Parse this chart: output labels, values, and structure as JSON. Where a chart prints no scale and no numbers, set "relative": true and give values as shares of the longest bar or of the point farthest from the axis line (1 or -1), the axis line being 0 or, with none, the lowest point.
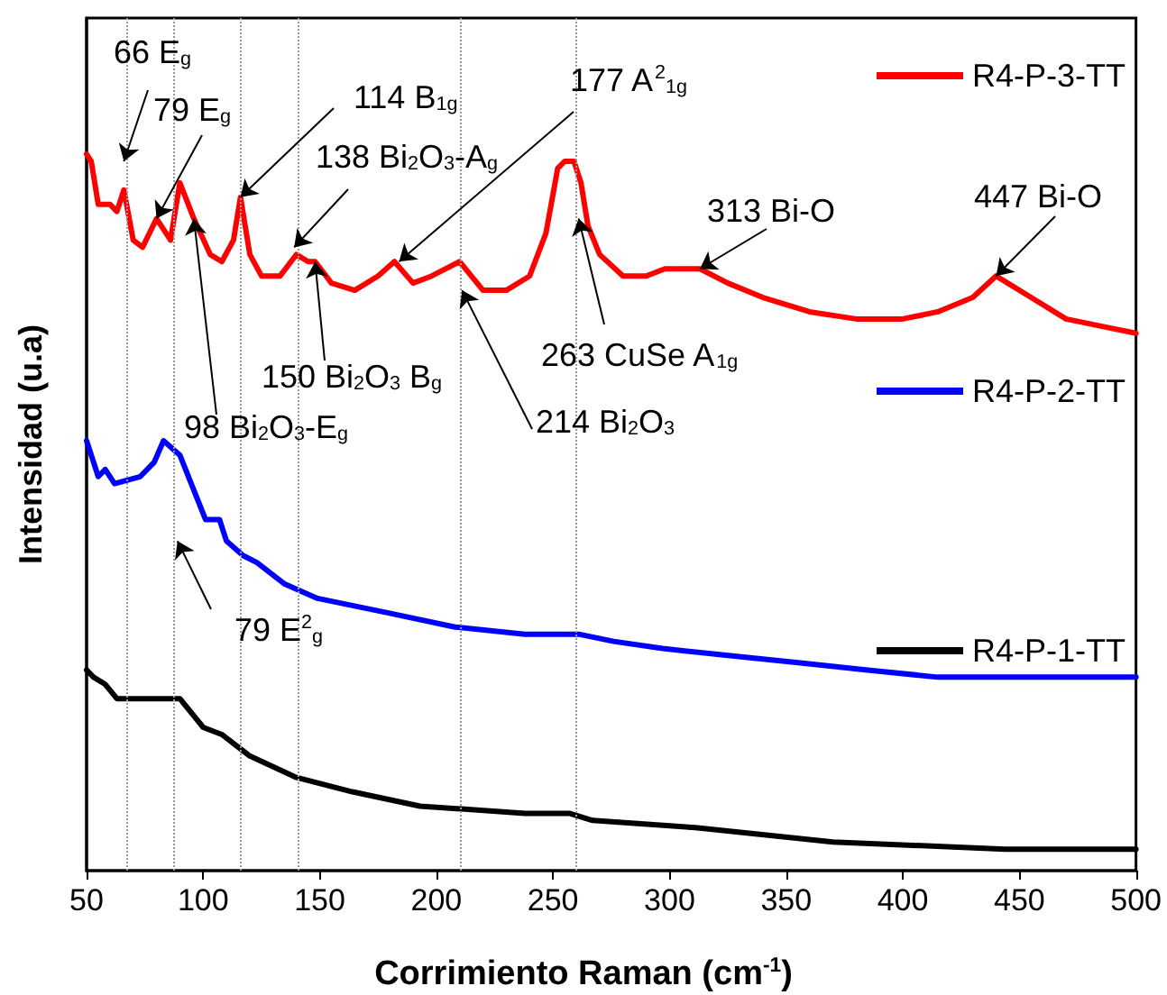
{
  "chart_data": {
    "type": "line",
    "xlabel": "Corrimiento Raman (cm$^{-1}$)",
    "ylabel": "Intensidad (u.a)",
    "relative": true,
    "tick_labels": "x",
    "xlim": [
      50,
      500
    ],
    "xticks": [
      50,
      100,
      150,
      200,
      250,
      300,
      350,
      400,
      450,
      500
    ],
    "legend": "right",
    "marker": "none",
    "line_style": "solid",
    "grid": false,
    "series": [
      {
        "name": "R4-P-3-TT",
        "color": "#ff0000",
        "x": [
          50,
          52,
          55,
          60,
          63,
          66,
          70,
          74,
          80,
          84,
          86,
          90,
          96,
          103,
          108,
          113,
          116,
          120,
          125,
          133,
          140,
          145,
          148,
          155,
          165,
          175,
          182,
          190,
          198,
          210,
          220,
          230,
          240,
          247,
          252,
          255,
          257,
          259,
          262,
          265,
          270,
          280,
          290,
          298,
          305,
          313,
          325,
          340,
          360,
          380,
          400,
          415,
          430,
          440,
          445,
          455,
          470,
          485,
          500
        ],
        "values": [
          1.0,
          0.99,
          0.93,
          0.93,
          0.92,
          0.95,
          0.88,
          0.87,
          0.91,
          0.89,
          0.88,
          0.96,
          0.91,
          0.86,
          0.85,
          0.88,
          0.94,
          0.86,
          0.83,
          0.83,
          0.86,
          0.85,
          0.85,
          0.82,
          0.81,
          0.83,
          0.85,
          0.82,
          0.83,
          0.85,
          0.81,
          0.81,
          0.83,
          0.89,
          0.98,
          0.99,
          0.99,
          0.99,
          0.96,
          0.9,
          0.86,
          0.83,
          0.83,
          0.84,
          0.84,
          0.84,
          0.82,
          0.8,
          0.78,
          0.77,
          0.77,
          0.78,
          0.8,
          0.83,
          0.82,
          0.8,
          0.77,
          0.76,
          0.75
        ]
      },
      {
        "name": "R4-P-2-TT",
        "color": "#0000ff",
        "x": [
          50,
          55,
          58,
          62,
          73,
          79,
          83,
          90,
          101,
          107,
          110,
          117,
          123,
          135,
          149,
          164,
          179,
          208,
          238,
          261,
          276,
          297,
          326,
          356,
          385,
          415,
          459,
          500
        ],
        "values": [
          0.6,
          0.55,
          0.56,
          0.54,
          0.55,
          0.57,
          0.6,
          0.58,
          0.49,
          0.49,
          0.46,
          0.44,
          0.43,
          0.4,
          0.38,
          0.37,
          0.36,
          0.34,
          0.33,
          0.33,
          0.32,
          0.31,
          0.3,
          0.29,
          0.28,
          0.27,
          0.27,
          0.27
        ]
      },
      {
        "name": "R4-P-1-TT",
        "color": "#000000",
        "x": [
          50,
          53,
          58,
          63,
          74,
          83,
          90,
          100,
          108,
          120,
          140,
          164,
          193,
          238,
          257,
          267,
          311,
          370,
          444,
          500
        ],
        "values": [
          0.28,
          0.27,
          0.26,
          0.24,
          0.24,
          0.24,
          0.24,
          0.2,
          0.19,
          0.16,
          0.13,
          0.11,
          0.09,
          0.08,
          0.08,
          0.07,
          0.06,
          0.04,
          0.03,
          0.03
        ]
      }
    ],
    "ref_lines": [
      {
        "axis": "x",
        "value": 67
      },
      {
        "axis": "x",
        "value": 87
      },
      {
        "axis": "x",
        "value": 116
      },
      {
        "axis": "x",
        "value": 141
      },
      {
        "axis": "x",
        "value": 210
      },
      {
        "axis": "x",
        "value": 260
      }
    ],
    "annotations": [
      {
        "text": "66 E$_{g}$",
        "x": 66,
        "y": 0.99
      },
      {
        "text": "79 E$_{g}$",
        "x": 80,
        "y": 0.91
      },
      {
        "text": "114 B$_{1g}$",
        "x": 116,
        "y": 0.94
      },
      {
        "text": "138 Bi$_{2}$O$_{3}$-A$_{g}$",
        "x": 139,
        "y": 0.87
      },
      {
        "text": "177 A$^{2}$$_{1g}$",
        "x": 184,
        "y": 0.85
      },
      {
        "text": "98 Bi$_{2}$O$_{3}$-E$_{g}$",
        "x": 96,
        "y": 0.91
      },
      {
        "text": "150 Bi$_{2}$O$_{3}$ B$_{g}$",
        "x": 148,
        "y": 0.85
      },
      {
        "text": "214 Bi$_{2}$O$_{3}$",
        "x": 211,
        "y": 0.81
      },
      {
        "text": "263 CuSe A$_{1g}$",
        "x": 261,
        "y": 0.91
      },
      {
        "text": "313 Bi-O",
        "x": 313,
        "y": 0.84
      },
      {
        "text": "447 Bi-O",
        "x": 440,
        "y": 0.83
      },
      {
        "text": "79 E$^{2}$$_{g}$",
        "x": 89,
        "y": 0.46
      }
    ]
  }
}
